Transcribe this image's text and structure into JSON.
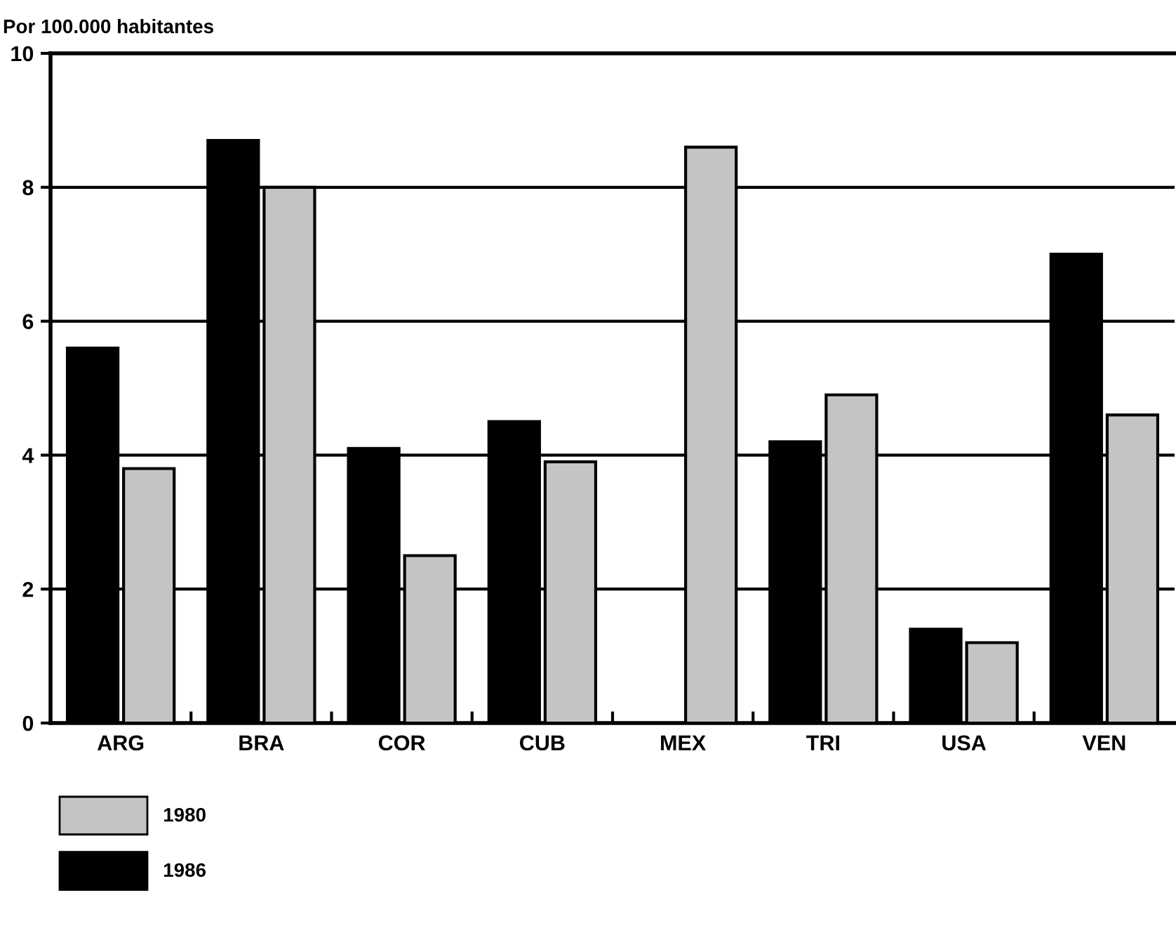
{
  "chart_data": {
    "type": "bar",
    "ylabel": "Por 100.000 habitantes",
    "categories": [
      "ARG",
      "BRA",
      "COR",
      "CUB",
      "MEX",
      "TRI",
      "USA",
      "VEN"
    ],
    "series": [
      {
        "name": "1986",
        "color": "#000000",
        "values": [
          5.6,
          8.7,
          4.1,
          4.5,
          null,
          4.2,
          1.4,
          7.0
        ]
      },
      {
        "name": "1980",
        "color": "#c4c4c4",
        "values": [
          3.8,
          8.0,
          2.5,
          3.9,
          8.6,
          4.9,
          1.2,
          4.6
        ]
      }
    ],
    "ylim": [
      0,
      10
    ],
    "yticks": [
      0,
      2,
      4,
      6,
      8,
      10
    ],
    "grid": "y",
    "legend": "bottom"
  }
}
